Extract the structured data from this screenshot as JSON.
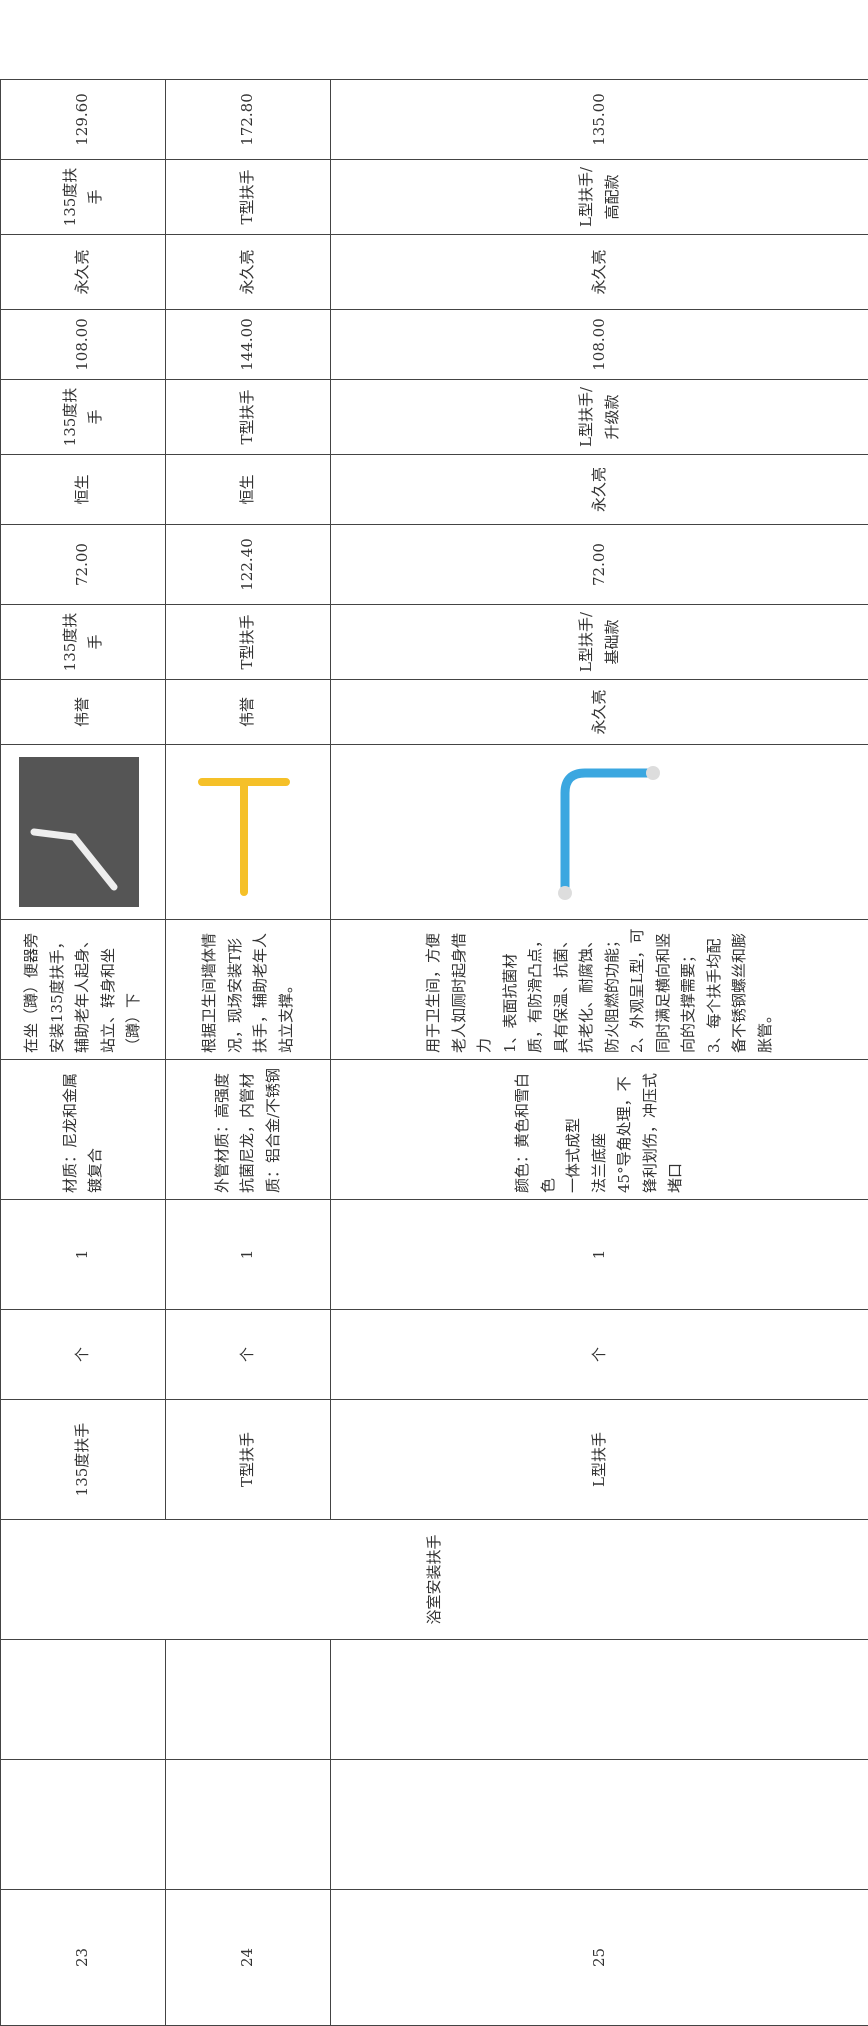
{
  "category": "浴室安装扶手",
  "rows": [
    {
      "no": "23",
      "name": "135度扶手",
      "unit": "个",
      "qty": "1",
      "material": [
        "材质：尼龙和金属镀复合"
      ],
      "description": [
        "在坐（蹲）便器旁安装135度扶手，辅助老年人起身、站立、转身和坐（蹲）下"
      ],
      "quotes": [
        {
          "brand": "伟誉",
          "spec": "135度扶手",
          "price": "72.00"
        },
        {
          "brand": "恒生",
          "spec": "135度扶手",
          "price": "108.00"
        },
        {
          "brand": "永久亮",
          "spec": "135度扶手",
          "price": "129.60"
        }
      ]
    },
    {
      "no": "24",
      "name": "T型扶手",
      "unit": "个",
      "qty": "1",
      "material": [
        "外管材质：高强度抗菌尼龙，内管材质：铝合金/不锈钢"
      ],
      "description": [
        "根据卫生间墙体情况，现场安装T形扶手，辅助老年人站立支撑。"
      ],
      "quotes": [
        {
          "brand": "伟誉",
          "spec": "T型扶手",
          "price": "122.40"
        },
        {
          "brand": "恒生",
          "spec": "T型扶手",
          "price": "144.00"
        },
        {
          "brand": "永久亮",
          "spec": "T型扶手",
          "price": "172.80"
        }
      ]
    },
    {
      "no": "25",
      "name": "L型扶手",
      "unit": "个",
      "qty": "1",
      "material": [
        "颜色：黄色和雪白色",
        "一体式成型",
        "法兰底座",
        "45°导角处理，不锋利划伤，冲压式堵口"
      ],
      "description": [
        "用于卫生间，方便老人如厕时起身借力",
        "1、表面抗菌材质，有防滑凸点，具有保温、抗菌、抗老化、耐腐蚀、防火阻燃的功能；",
        "2、外观呈L型，可同时满足横向和竖向的支撑需要；",
        "3、每个扶手均配备不锈钢螺丝和膨胀管。"
      ],
      "quotes": [
        {
          "brand": "永久亮",
          "spec": "L型扶手/基础款",
          "price": "72.00"
        },
        {
          "brand": "永久亮",
          "spec": "L型扶手/升级款",
          "price": "108.00"
        },
        {
          "brand": "永久亮",
          "spec": "L型扶手/高配款",
          "price": "135.00"
        }
      ]
    }
  ]
}
